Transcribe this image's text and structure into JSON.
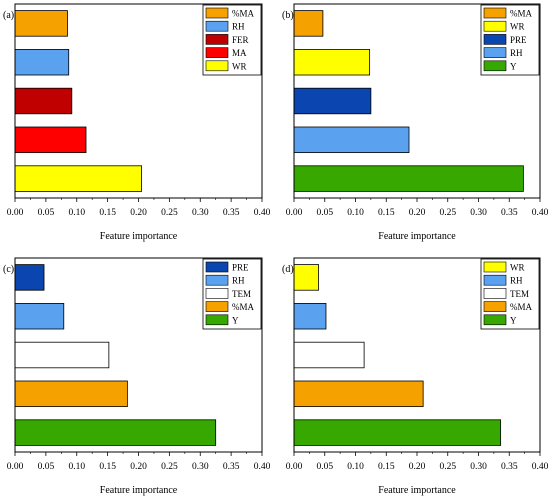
{
  "colors": {
    "%MA": "#f5a100",
    "RH": "#5aa2f0",
    "FER": "#c00000",
    "MA": "#ff0000",
    "WR": "#ffff00",
    "PRE": "#0b46b0",
    "Y": "#36a800",
    "TEM": "#ffffff"
  },
  "chart_data": [
    {
      "type": "bar",
      "orientation": "horizontal",
      "panel_label": "(a)",
      "categories": [
        "%MA",
        "RH",
        "FER",
        "MA",
        "WR"
      ],
      "values": [
        0.085,
        0.087,
        0.092,
        0.115,
        0.205
      ],
      "xlabel": "Feature importance",
      "xlim": [
        0.0,
        0.4
      ],
      "xticks": [
        "0.00",
        "0.05",
        "0.10",
        "0.15",
        "0.20",
        "0.25",
        "0.30",
        "0.35",
        "0.40"
      ],
      "legend": [
        "%MA",
        "RH",
        "FER",
        "MA",
        "WR"
      ],
      "legend_position": "top-right",
      "grid": false
    },
    {
      "type": "bar",
      "orientation": "horizontal",
      "panel_label": "(b)",
      "categories": [
        "%MA",
        "WR",
        "PRE",
        "RH",
        "Y"
      ],
      "values": [
        0.047,
        0.123,
        0.125,
        0.187,
        0.373
      ],
      "xlabel": "Feature importance",
      "xlim": [
        0.0,
        0.4
      ],
      "xticks": [
        "0.00",
        "0.05",
        "0.10",
        "0.15",
        "0.20",
        "0.25",
        "0.30",
        "0.35",
        "0.40"
      ],
      "legend": [
        "%MA",
        "WR",
        "PRE",
        "RH",
        "Y"
      ],
      "legend_position": "top-right",
      "grid": false
    },
    {
      "type": "bar",
      "orientation": "horizontal",
      "panel_label": "(c)",
      "categories": [
        "PRE",
        "RH",
        "TEM",
        "%MA",
        "Y"
      ],
      "values": [
        0.047,
        0.079,
        0.152,
        0.182,
        0.325
      ],
      "xlabel": "Feature importance",
      "xlim": [
        0.0,
        0.4
      ],
      "xticks": [
        "0.00",
        "0.05",
        "0.10",
        "0.15",
        "0.20",
        "0.25",
        "0.30",
        "0.35",
        "0.40"
      ],
      "legend": [
        "PRE",
        "RH",
        "TEM",
        "%MA",
        "Y"
      ],
      "legend_position": "top-right",
      "grid": false
    },
    {
      "type": "bar",
      "orientation": "horizontal",
      "panel_label": "(d)",
      "categories": [
        "WR",
        "RH",
        "TEM",
        "%MA",
        "Y"
      ],
      "values": [
        0.04,
        0.052,
        0.114,
        0.21,
        0.336
      ],
      "xlabel": "Feature importance",
      "xlim": [
        0.0,
        0.4
      ],
      "xticks": [
        "0.00",
        "0.05",
        "0.10",
        "0.15",
        "0.20",
        "0.25",
        "0.30",
        "0.35",
        "0.40"
      ],
      "legend": [
        "WR",
        "RH",
        "TEM",
        "%MA",
        "Y"
      ],
      "legend_position": "top-right",
      "grid": false
    }
  ]
}
